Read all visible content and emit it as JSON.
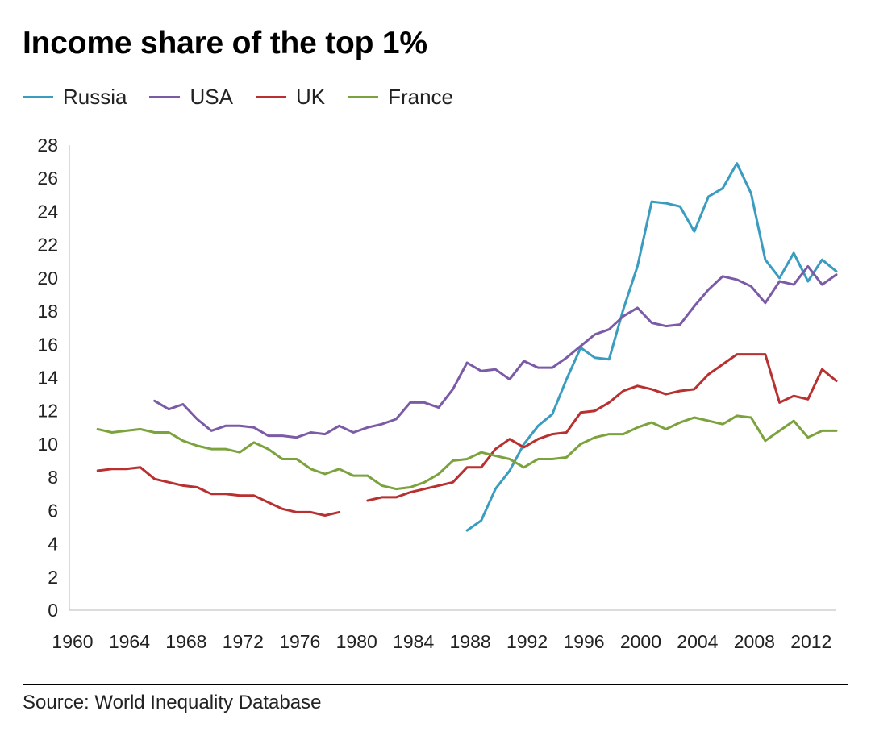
{
  "title": "Income share of the top 1%",
  "source": "Source: World Inequality Database",
  "chart_data": {
    "type": "line",
    "title": "Income share of the top 1%",
    "xlabel": "",
    "ylabel": "",
    "xlim": [
      1960,
      2014
    ],
    "ylim": [
      0,
      28
    ],
    "x_ticks": [
      "1960",
      "1964",
      "1968",
      "1972",
      "1976",
      "1980",
      "1984",
      "1988",
      "1992",
      "1996",
      "2000",
      "2004",
      "2008",
      "2012"
    ],
    "y_ticks": [
      "0",
      "2",
      "4",
      "6",
      "8",
      "10",
      "12",
      "14",
      "16",
      "18",
      "20",
      "22",
      "24",
      "26",
      "28"
    ],
    "legend_position": "top-left",
    "grid": false,
    "series": [
      {
        "name": "Russia",
        "color": "#3a9cbf",
        "x": [
          1988,
          1989,
          1990,
          1991,
          1992,
          1993,
          1994,
          1995,
          1996,
          1997,
          1998,
          1999,
          2000,
          2001,
          2002,
          2003,
          2004,
          2005,
          2006,
          2007,
          2008,
          2009,
          2010,
          2011,
          2012,
          2013,
          2014
        ],
        "y": [
          4.8,
          5.4,
          7.3,
          8.4,
          10.0,
          11.1,
          11.8,
          13.9,
          15.8,
          15.2,
          15.1,
          18.1,
          20.7,
          24.6,
          24.5,
          24.3,
          22.8,
          24.9,
          25.4,
          26.9,
          25.1,
          21.1,
          20.0,
          21.5,
          19.8,
          21.1,
          20.4
        ]
      },
      {
        "name": "USA",
        "color": "#7b5ba6",
        "x": [
          1966,
          1967,
          1968,
          1969,
          1970,
          1971,
          1972,
          1973,
          1974,
          1975,
          1976,
          1977,
          1978,
          1979,
          1980,
          1981,
          1982,
          1983,
          1984,
          1985,
          1986,
          1987,
          1988,
          1989,
          1990,
          1991,
          1992,
          1993,
          1994,
          1995,
          1996,
          1997,
          1998,
          1999,
          2000,
          2001,
          2002,
          2003,
          2004,
          2005,
          2006,
          2007,
          2008,
          2009,
          2010,
          2011,
          2012,
          2013,
          2014
        ],
        "y": [
          12.6,
          12.1,
          12.4,
          11.5,
          10.8,
          11.1,
          11.1,
          11.0,
          10.5,
          10.5,
          10.4,
          10.7,
          10.6,
          11.1,
          10.7,
          11.0,
          11.2,
          11.5,
          12.5,
          12.5,
          12.2,
          13.3,
          14.9,
          14.4,
          14.5,
          13.9,
          15.0,
          14.6,
          14.6,
          15.2,
          15.9,
          16.6,
          16.9,
          17.7,
          18.2,
          17.3,
          17.1,
          17.2,
          18.3,
          19.3,
          20.1,
          19.9,
          19.5,
          18.5,
          19.8,
          19.6,
          20.7,
          19.6,
          20.2
        ]
      },
      {
        "name": "UK",
        "color": "#b83030",
        "segments": [
          {
            "x": [
              1962,
              1963,
              1964,
              1965,
              1966,
              1967,
              1968,
              1969,
              1970,
              1971,
              1972,
              1973,
              1974,
              1975,
              1976,
              1977,
              1978,
              1979
            ],
            "y": [
              8.4,
              8.5,
              8.5,
              8.6,
              7.9,
              7.7,
              7.5,
              7.4,
              7.0,
              7.0,
              6.9,
              6.9,
              6.5,
              6.1,
              5.9,
              5.9,
              5.7,
              5.9
            ]
          },
          {
            "x": [
              1981,
              1982,
              1983,
              1984,
              1985,
              1986,
              1987,
              1988,
              1989,
              1990,
              1991,
              1992,
              1993,
              1994,
              1995,
              1996,
              1997,
              1998,
              1999,
              2000,
              2001,
              2002,
              2003,
              2004,
              2005,
              2006,
              2007,
              2008,
              2009,
              2010,
              2011,
              2012,
              2013,
              2014
            ],
            "y": [
              6.6,
              6.8,
              6.8,
              7.1,
              7.3,
              7.5,
              7.7,
              8.6,
              8.6,
              9.7,
              10.3,
              9.8,
              10.3,
              10.6,
              10.7,
              11.9,
              12.0,
              12.5,
              13.2,
              13.5,
              13.3,
              13.0,
              13.2,
              13.3,
              14.2,
              14.8,
              15.4,
              15.4,
              15.4,
              12.5,
              12.9,
              12.7,
              14.5,
              13.8
            ]
          }
        ]
      },
      {
        "name": "France",
        "color": "#7ba23c",
        "x": [
          1962,
          1963,
          1964,
          1965,
          1966,
          1967,
          1968,
          1969,
          1970,
          1971,
          1972,
          1973,
          1974,
          1975,
          1976,
          1977,
          1978,
          1979,
          1980,
          1981,
          1982,
          1983,
          1984,
          1985,
          1986,
          1987,
          1988,
          1989,
          1990,
          1991,
          1992,
          1993,
          1994,
          1995,
          1996,
          1997,
          1998,
          1999,
          2000,
          2001,
          2002,
          2003,
          2004,
          2005,
          2006,
          2007,
          2008,
          2009,
          2010,
          2011,
          2012,
          2013,
          2014
        ],
        "y": [
          10.9,
          10.7,
          10.8,
          10.9,
          10.7,
          10.7,
          10.2,
          9.9,
          9.7,
          9.7,
          9.5,
          10.1,
          9.7,
          9.1,
          9.1,
          8.5,
          8.2,
          8.5,
          8.1,
          8.1,
          7.5,
          7.3,
          7.4,
          7.7,
          8.2,
          9.0,
          9.1,
          9.5,
          9.3,
          9.1,
          8.6,
          9.1,
          9.1,
          9.2,
          10.0,
          10.4,
          10.6,
          10.6,
          11.0,
          11.3,
          10.9,
          11.3,
          11.6,
          11.4,
          11.2,
          11.7,
          11.6,
          10.2,
          10.8,
          11.4,
          10.4,
          10.8,
          10.8
        ]
      }
    ]
  }
}
